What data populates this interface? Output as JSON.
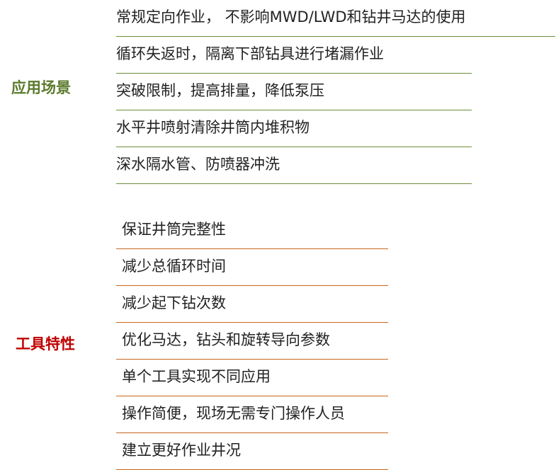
{
  "sections": [
    {
      "label": "应用场景",
      "items": [
        "常规定向作业， 不影响MWD/LWD和钻井马达的使用",
        "循环失返时，隔离下部钻具进行堵漏作业",
        "突破限制，提高排量，降低泵压",
        "水平井喷射清除井筒内堆积物",
        "深水隔水管、防喷器冲洗"
      ]
    },
    {
      "label": "工具特性",
      "items": [
        "保证井筒完整性",
        "减少总循环时间",
        "减少起下钻次数",
        "优化马达，钻头和旋转导向参数",
        "单个工具实现不同应用",
        "操作简便，现场无需专门操作人员",
        "建立更好作业井况"
      ]
    }
  ]
}
